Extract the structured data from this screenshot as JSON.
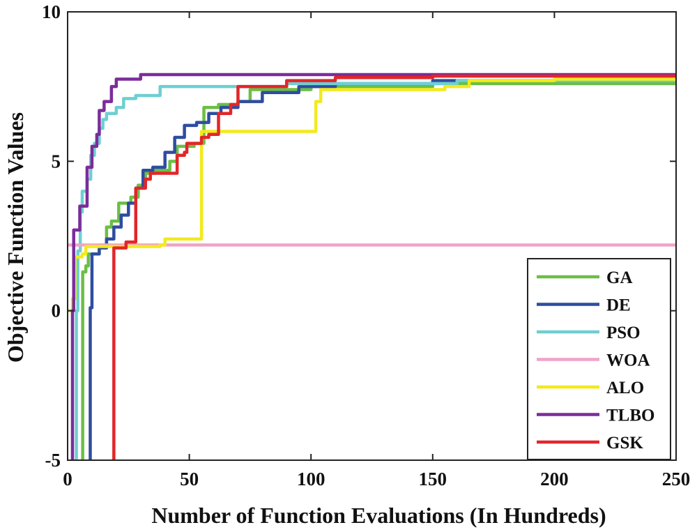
{
  "chart_data": {
    "type": "line",
    "title": "",
    "xlabel": "Number of Function Evaluations (In Hundreds)",
    "ylabel": "Objective Function Values",
    "xlim": [
      0,
      250
    ],
    "ylim": [
      -5,
      10
    ],
    "xticks": [
      0,
      50,
      100,
      150,
      200,
      250
    ],
    "yticks": [
      -5,
      0,
      5,
      10
    ],
    "grid": false,
    "legend_position": "bottom-right",
    "series": [
      {
        "name": "GA",
        "color": "#6abf45",
        "points": [
          [
            5.5,
            -5
          ],
          [
            6.2,
            1.3
          ],
          [
            7.5,
            1.5
          ],
          [
            8.5,
            1.9
          ],
          [
            13,
            2.2
          ],
          [
            16,
            2.8
          ],
          [
            18,
            3.0
          ],
          [
            21,
            3.6
          ],
          [
            26,
            3.8
          ],
          [
            29,
            4.2
          ],
          [
            32,
            4.6
          ],
          [
            36,
            4.7
          ],
          [
            42,
            5.0
          ],
          [
            45,
            5.5
          ],
          [
            52,
            5.6
          ],
          [
            56,
            6.8
          ],
          [
            62,
            6.9
          ],
          [
            70,
            7.0
          ],
          [
            75,
            7.4
          ],
          [
            100,
            7.5
          ],
          [
            150,
            7.6
          ],
          [
            250,
            7.8
          ]
        ]
      },
      {
        "name": "DE",
        "color": "#2e4da0",
        "points": [
          [
            8.8,
            -5
          ],
          [
            9.3,
            0.1
          ],
          [
            10,
            1.9
          ],
          [
            13,
            2.1
          ],
          [
            16,
            2.4
          ],
          [
            19,
            2.8
          ],
          [
            22,
            3.2
          ],
          [
            25,
            3.6
          ],
          [
            28,
            4.1
          ],
          [
            31,
            4.7
          ],
          [
            35,
            4.8
          ],
          [
            40,
            5.3
          ],
          [
            44,
            5.8
          ],
          [
            48,
            6.2
          ],
          [
            53,
            6.3
          ],
          [
            58,
            6.6
          ],
          [
            63,
            6.8
          ],
          [
            70,
            7.0
          ],
          [
            80,
            7.3
          ],
          [
            95,
            7.5
          ],
          [
            110,
            7.6
          ],
          [
            150,
            7.7
          ],
          [
            250,
            7.8
          ]
        ]
      },
      {
        "name": "PSO",
        "color": "#6ecfd2",
        "points": [
          [
            3,
            -5
          ],
          [
            3.6,
            0
          ],
          [
            4.2,
            2.0
          ],
          [
            5.2,
            3.3
          ],
          [
            6,
            4.0
          ],
          [
            8,
            4.4
          ],
          [
            9.5,
            5.2
          ],
          [
            11,
            5.6
          ],
          [
            13,
            6.1
          ],
          [
            14.5,
            6.4
          ],
          [
            16,
            6.6
          ],
          [
            20,
            6.8
          ],
          [
            23,
            7.1
          ],
          [
            28,
            7.2
          ],
          [
            38,
            7.5
          ],
          [
            60,
            7.5
          ],
          [
            90,
            7.6
          ],
          [
            160,
            7.7
          ],
          [
            250,
            7.8
          ]
        ]
      },
      {
        "name": "WOA",
        "color": "#f0a3c8",
        "points": [
          [
            0,
            2.2
          ],
          [
            2,
            2.2
          ],
          [
            250,
            2.2
          ]
        ]
      },
      {
        "name": "ALO",
        "color": "#f2ea1c",
        "points": [
          [
            0,
            0
          ],
          [
            2,
            0.4
          ],
          [
            3,
            1.8
          ],
          [
            6,
            1.9
          ],
          [
            7.5,
            2.15
          ],
          [
            38,
            2.2
          ],
          [
            40,
            2.4
          ],
          [
            52,
            2.4
          ],
          [
            55,
            6.0
          ],
          [
            100,
            6.0
          ],
          [
            102,
            7.0
          ],
          [
            104,
            7.4
          ],
          [
            140,
            7.4
          ],
          [
            155,
            7.5
          ],
          [
            165,
            7.7
          ],
          [
            200,
            7.75
          ],
          [
            250,
            7.8
          ]
        ]
      },
      {
        "name": "TLBO",
        "color": "#7b2d9a",
        "points": [
          [
            1.5,
            -5
          ],
          [
            2,
            0
          ],
          [
            2.5,
            2.7
          ],
          [
            5,
            3.5
          ],
          [
            8,
            4.8
          ],
          [
            10,
            5.5
          ],
          [
            12,
            5.9
          ],
          [
            13,
            6.7
          ],
          [
            15,
            7.0
          ],
          [
            18,
            7.5
          ],
          [
            20,
            7.75
          ],
          [
            30,
            7.9
          ],
          [
            60,
            7.9
          ],
          [
            250,
            7.9
          ]
        ]
      },
      {
        "name": "GSK",
        "color": "#e2262a",
        "points": [
          [
            18.5,
            -5
          ],
          [
            19,
            2.1
          ],
          [
            24,
            2.3
          ],
          [
            28,
            4.1
          ],
          [
            32,
            4.4
          ],
          [
            34,
            4.6
          ],
          [
            40,
            4.6
          ],
          [
            45,
            5.2
          ],
          [
            48,
            5.3
          ],
          [
            49,
            5.6
          ],
          [
            52,
            5.6
          ],
          [
            55,
            5.8
          ],
          [
            58,
            5.9
          ],
          [
            62,
            6.6
          ],
          [
            67,
            6.9
          ],
          [
            70,
            7.5
          ],
          [
            80,
            7.5
          ],
          [
            90,
            7.7
          ],
          [
            110,
            7.8
          ],
          [
            150,
            7.85
          ],
          [
            250,
            7.9
          ]
        ]
      }
    ]
  }
}
